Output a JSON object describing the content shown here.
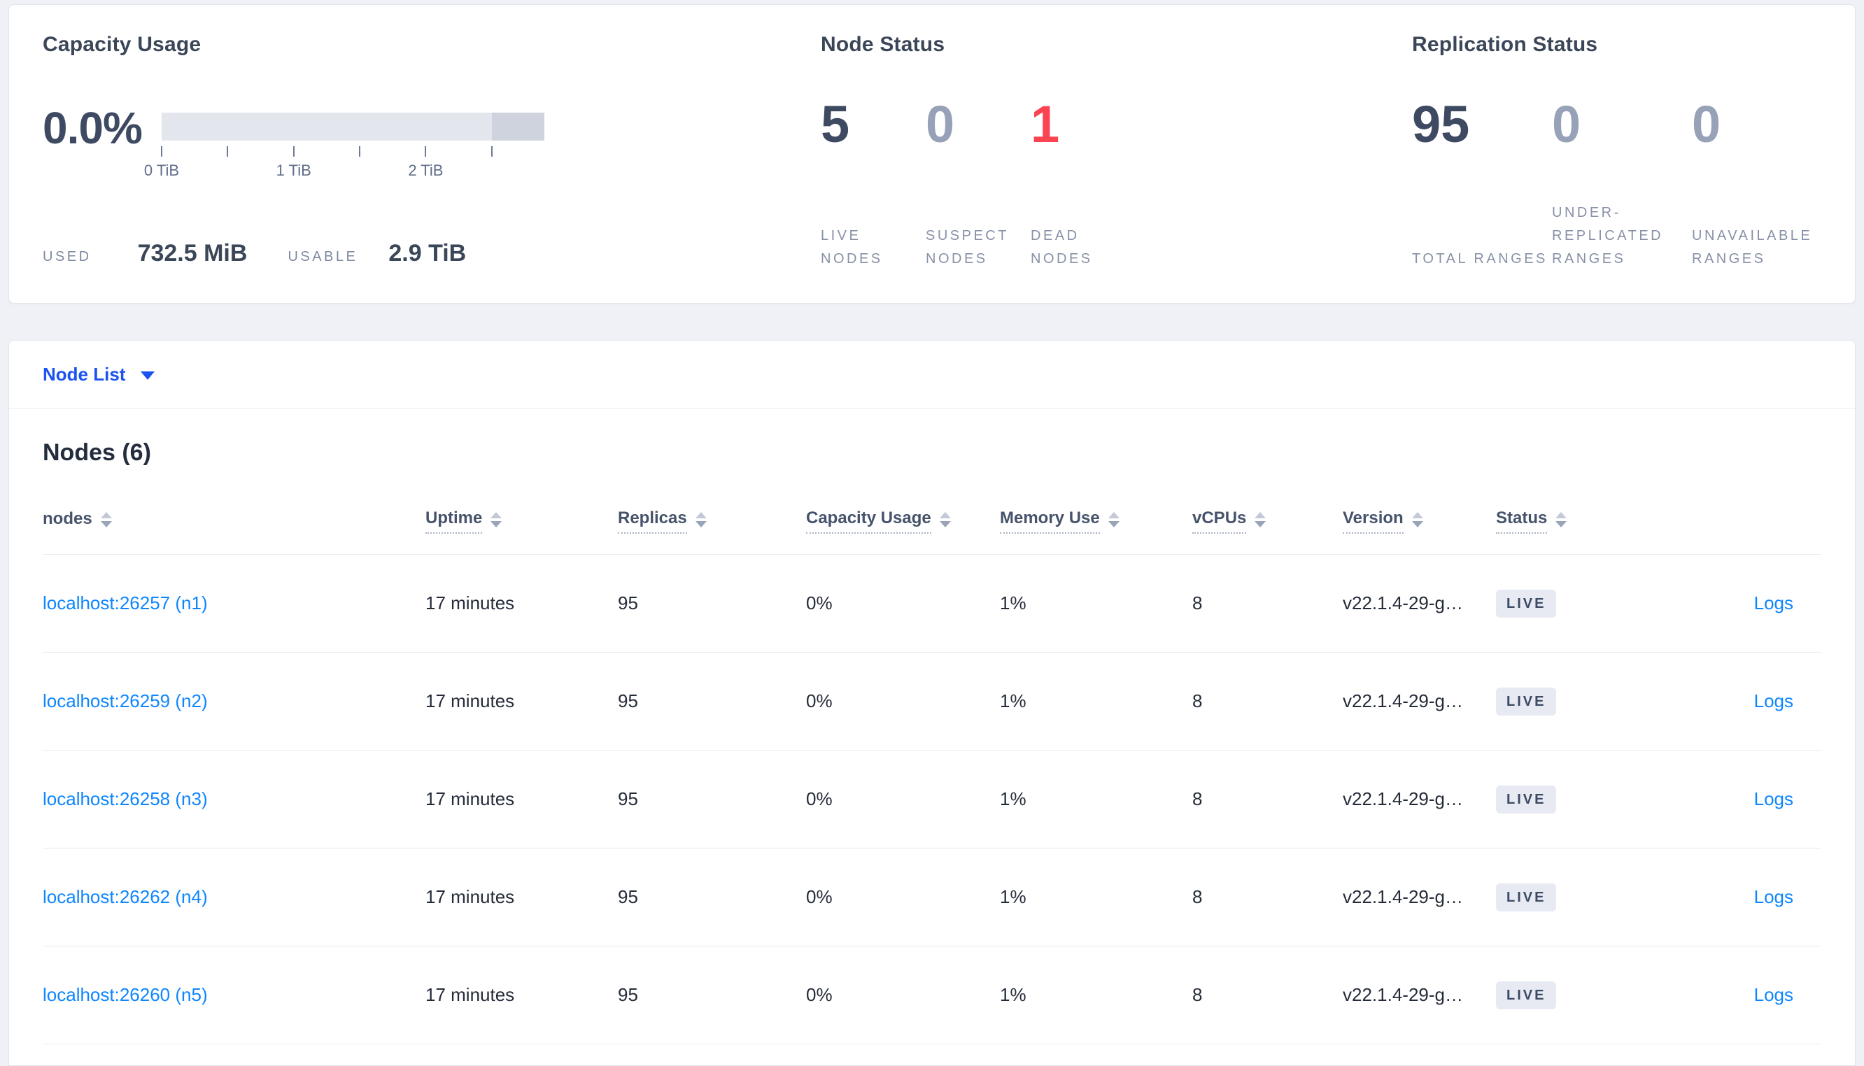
{
  "overview": {
    "capacity": {
      "title": "Capacity Usage",
      "percent": "0.0%",
      "tick_labels": [
        "0 TiB",
        "1 TiB",
        "2 TiB"
      ],
      "used_label": "USED",
      "used_value": "732.5 MiB",
      "usable_label": "USABLE",
      "usable_value": "2.9 TiB"
    },
    "node_status": {
      "title": "Node Status",
      "stats": [
        {
          "value": "5",
          "label": "LIVE NODES",
          "tone": "dark"
        },
        {
          "value": "0",
          "label": "SUSPECT NODES",
          "tone": "muted"
        },
        {
          "value": "1",
          "label": "DEAD NODES",
          "tone": "danger"
        }
      ]
    },
    "replication_status": {
      "title": "Replication Status",
      "stats": [
        {
          "value": "95",
          "label": "TOTAL RANGES",
          "tone": "dark"
        },
        {
          "value": "0",
          "label": "UNDER-REPLICATED RANGES",
          "tone": "muted"
        },
        {
          "value": "0",
          "label": "UNAVAILABLE RANGES",
          "tone": "muted"
        }
      ]
    }
  },
  "capacity_bar": {
    "tick_positions_pct": [
      0,
      17.2,
      34.5,
      51.7,
      69,
      86.2
    ],
    "label_positions_pct": [
      0,
      34.5,
      69
    ],
    "dark_segment_width_pct": 13.8
  },
  "colors": {
    "dark": "#3e4a61",
    "muted": "#97a1b7",
    "danger": "#fb4352",
    "link": "#0d86ff",
    "accent_blue": "#1b52f0"
  },
  "view_selector": {
    "label": "Node List"
  },
  "table": {
    "title": "Nodes (6)",
    "columns": [
      {
        "label": "nodes",
        "sortable": true,
        "tooltip_underline": false
      },
      {
        "label": "Uptime",
        "sortable": true,
        "tooltip_underline": true
      },
      {
        "label": "Replicas",
        "sortable": true,
        "tooltip_underline": true
      },
      {
        "label": "Capacity Usage",
        "sortable": true,
        "tooltip_underline": true
      },
      {
        "label": "Memory Use",
        "sortable": true,
        "tooltip_underline": true
      },
      {
        "label": "vCPUs",
        "sortable": true,
        "tooltip_underline": true
      },
      {
        "label": "Version",
        "sortable": true,
        "tooltip_underline": true
      },
      {
        "label": "Status",
        "sortable": true,
        "tooltip_underline": true
      },
      {
        "label": "",
        "sortable": false,
        "tooltip_underline": false
      }
    ],
    "logs_label": "Logs",
    "rows": [
      {
        "node": "localhost:26257 (n1)",
        "uptime": "17 minutes",
        "replicas": "95",
        "capacity_usage": "0%",
        "memory_use": "1%",
        "vcpus": "8",
        "version": "v22.1.4-29-g…",
        "status": "LIVE"
      },
      {
        "node": "localhost:26259 (n2)",
        "uptime": "17 minutes",
        "replicas": "95",
        "capacity_usage": "0%",
        "memory_use": "1%",
        "vcpus": "8",
        "version": "v22.1.4-29-g…",
        "status": "LIVE"
      },
      {
        "node": "localhost:26258 (n3)",
        "uptime": "17 minutes",
        "replicas": "95",
        "capacity_usage": "0%",
        "memory_use": "1%",
        "vcpus": "8",
        "version": "v22.1.4-29-g…",
        "status": "LIVE"
      },
      {
        "node": "localhost:26262 (n4)",
        "uptime": "17 minutes",
        "replicas": "95",
        "capacity_usage": "0%",
        "memory_use": "1%",
        "vcpus": "8",
        "version": "v22.1.4-29-g…",
        "status": "LIVE"
      },
      {
        "node": "localhost:26260 (n5)",
        "uptime": "17 minutes",
        "replicas": "95",
        "capacity_usage": "0%",
        "memory_use": "1%",
        "vcpus": "8",
        "version": "v22.1.4-29-g…",
        "status": "LIVE"
      }
    ]
  }
}
